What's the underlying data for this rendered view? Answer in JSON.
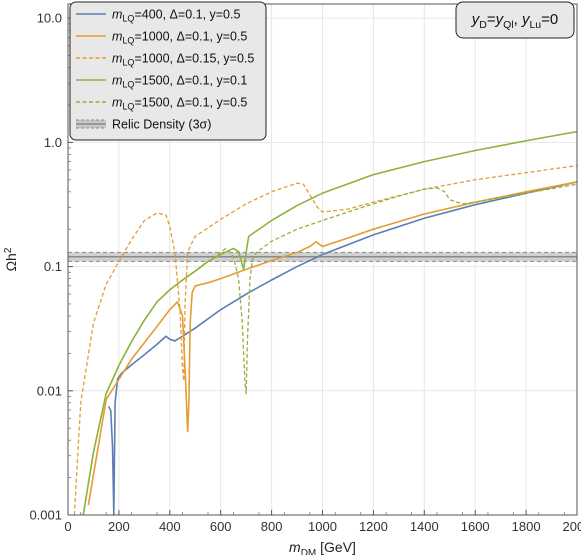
{
  "chart_data": {
    "type": "line",
    "title": "",
    "xlabel": {
      "main": "m",
      "sub": "DM",
      "unit": " [GeV]"
    },
    "ylabel": {
      "main": "Ωh",
      "sup": "2"
    },
    "xlim": [
      0,
      2000
    ],
    "ylim": [
      0.001,
      13
    ],
    "yscale": "log",
    "grid": true,
    "legend_placement": "top-left",
    "x_ticks": [
      "0",
      "200",
      "400",
      "600",
      "800",
      "1000",
      "1200",
      "1400",
      "1600",
      "1800",
      "2000"
    ],
    "y_ticks": [
      "0.001",
      "0.01",
      "0.1",
      "1.0",
      "10.0"
    ],
    "annotation": {
      "y": "y",
      "y_sub": "D",
      "eq": "=",
      "y2": "y",
      "y2_sub": "Ql",
      "comma": ", ",
      "y3": "y",
      "y3_sub": "Lu",
      "tail": "=0"
    },
    "relic_band": {
      "label": "Relic Density (3σ)",
      "central": 0.12,
      "lower": 0.11,
      "upper": 0.13
    },
    "series": [
      {
        "label_mass": "m",
        "label_sub": "LQ",
        "label_rest": "=400, Δ=0.1, y=0.5",
        "color": "#5b7fb4",
        "dash": "solid",
        "x": [
          160,
          168,
          175,
          180,
          185,
          195,
          210,
          250,
          300,
          350,
          385,
          400,
          420,
          450,
          500,
          600,
          700,
          800,
          900,
          1000,
          1200,
          1400,
          1600,
          1800,
          2000
        ],
        "y": [
          0.0075,
          0.0069,
          0.0035,
          0.001,
          0.008,
          0.0125,
          0.0138,
          0.0162,
          0.0195,
          0.0237,
          0.0275,
          0.026,
          0.0252,
          0.0275,
          0.032,
          0.045,
          0.06,
          0.078,
          0.1,
          0.125,
          0.18,
          0.245,
          0.315,
          0.39,
          0.48
        ]
      },
      {
        "label_mass": "m",
        "label_sub": "LQ",
        "label_rest": "=1000, Δ=0.1, y=0.5",
        "color": "#e59c32",
        "dash": "solid",
        "x": [
          80,
          150,
          250,
          350,
          400,
          430,
          450,
          462,
          470,
          475,
          480,
          488,
          500,
          550,
          600,
          700,
          800,
          900,
          950,
          975,
          1000,
          1020,
          1100,
          1200,
          1400,
          1600,
          1800,
          2000
        ],
        "y": [
          0.0012,
          0.0085,
          0.018,
          0.033,
          0.045,
          0.052,
          0.04,
          0.012,
          0.0047,
          0.008,
          0.035,
          0.062,
          0.07,
          0.074,
          0.08,
          0.095,
          0.112,
          0.13,
          0.145,
          0.158,
          0.145,
          0.15,
          0.17,
          0.2,
          0.265,
          0.33,
          0.4,
          0.48
        ]
      },
      {
        "label_mass": "m",
        "label_sub": "LQ",
        "label_rest": "=1000, Δ=0.15, y=0.5",
        "color": "#e59c32",
        "dash": "dashed",
        "x": [
          25,
          50,
          100,
          150,
          200,
          250,
          300,
          350,
          385,
          400,
          420,
          440,
          450,
          455,
          460,
          470,
          480,
          490,
          500,
          550,
          600,
          700,
          800,
          900,
          925,
          950,
          980,
          1000,
          1100,
          1200,
          1400,
          1600,
          1800,
          2000
        ],
        "y": [
          0.001,
          0.008,
          0.035,
          0.072,
          0.11,
          0.165,
          0.235,
          0.27,
          0.26,
          0.21,
          0.13,
          0.045,
          0.015,
          0.012,
          0.05,
          0.13,
          0.145,
          0.16,
          0.175,
          0.205,
          0.24,
          0.32,
          0.4,
          0.47,
          0.46,
          0.38,
          0.3,
          0.275,
          0.29,
          0.33,
          0.42,
          0.5,
          0.57,
          0.65
        ]
      },
      {
        "label_mass": "m",
        "label_sub": "LQ",
        "label_rest": "=1500, Δ=0.1, y=0.1",
        "color": "#8db33d",
        "dash": "solid",
        "x": [
          60,
          100,
          150,
          200,
          250,
          300,
          350,
          400,
          450,
          500,
          550,
          600,
          650,
          670,
          690,
          700,
          710,
          800,
          900,
          1000,
          1200,
          1400,
          1600,
          1800,
          2000
        ],
        "y": [
          0.001,
          0.0032,
          0.0095,
          0.016,
          0.025,
          0.037,
          0.052,
          0.065,
          0.078,
          0.092,
          0.11,
          0.125,
          0.14,
          0.132,
          0.095,
          0.13,
          0.175,
          0.235,
          0.31,
          0.39,
          0.55,
          0.7,
          0.86,
          1.03,
          1.22
        ]
      },
      {
        "label_mass": "m",
        "label_sub": "LQ",
        "label_rest": "=1500, Δ=0.1, y=0.5",
        "color": "#8db33d",
        "dash": "dashed",
        "x": [
          60,
          100,
          150,
          200,
          250,
          300,
          350,
          400,
          450,
          500,
          550,
          600,
          620,
          650,
          670,
          685,
          695,
          700,
          705,
          715,
          725,
          740,
          800,
          900,
          1000,
          1100,
          1200,
          1300,
          1400,
          1450,
          1480,
          1500,
          1550,
          1600,
          1800,
          2000
        ],
        "y": [
          0.001,
          0.0032,
          0.0095,
          0.016,
          0.025,
          0.037,
          0.052,
          0.065,
          0.078,
          0.092,
          0.11,
          0.13,
          0.14,
          0.12,
          0.08,
          0.035,
          0.012,
          0.0095,
          0.025,
          0.08,
          0.115,
          0.13,
          0.16,
          0.2,
          0.235,
          0.275,
          0.32,
          0.37,
          0.42,
          0.43,
          0.4,
          0.345,
          0.32,
          0.33,
          0.39,
          0.46
        ]
      }
    ]
  }
}
